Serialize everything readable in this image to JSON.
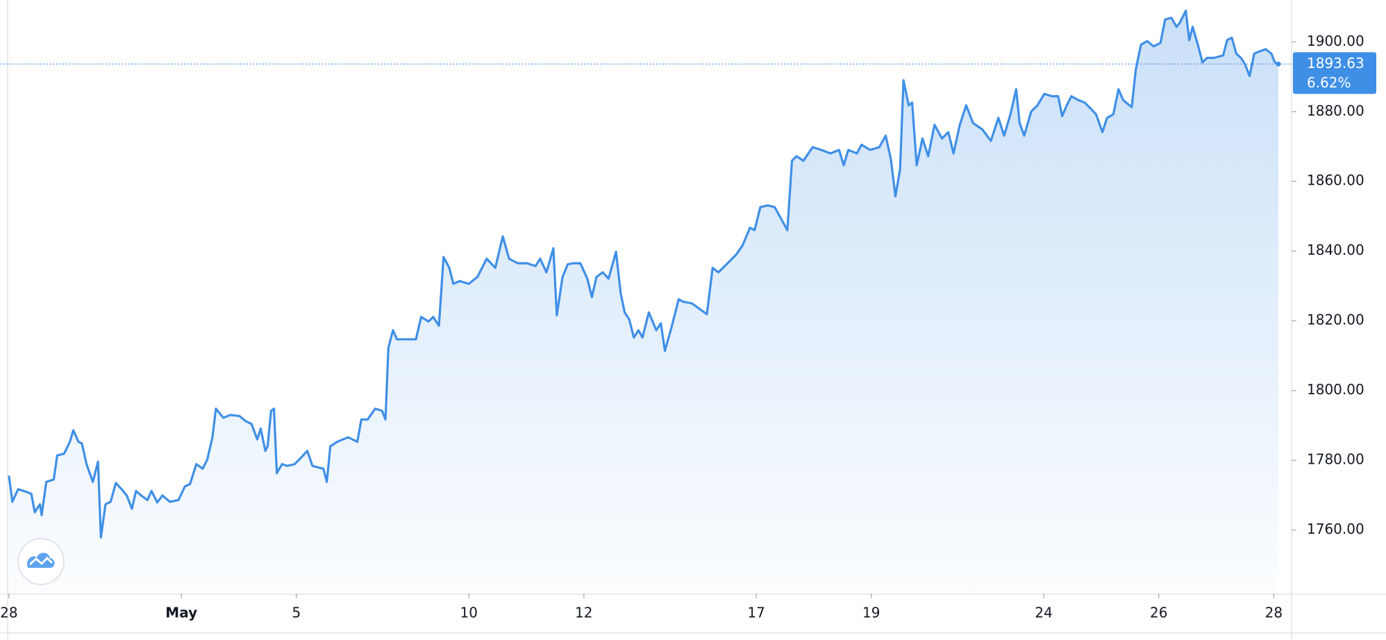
{
  "chart_data": {
    "type": "area",
    "x": [
      0.0,
      0.06,
      0.16,
      0.26,
      0.39,
      0.45,
      0.54,
      0.57,
      0.65,
      0.78,
      0.84,
      0.96,
      1.06,
      1.12,
      1.21,
      1.27,
      1.35,
      1.46,
      1.55,
      1.6,
      1.68,
      1.77,
      1.86,
      1.96,
      2.05,
      2.14,
      2.21,
      2.3,
      2.41,
      2.48,
      2.58,
      2.67,
      2.8,
      2.95,
      3.06,
      3.15,
      3.26,
      3.37,
      3.45,
      3.54,
      3.6,
      3.73,
      3.85,
      4.01,
      4.12,
      4.22,
      4.32,
      4.38,
      4.46,
      4.5,
      4.56,
      4.61,
      4.66,
      4.75,
      4.84,
      4.97,
      5.09,
      5.19,
      5.28,
      5.39,
      5.47,
      5.53,
      5.59,
      5.71,
      5.9,
      6.06,
      6.13,
      6.24,
      6.37,
      6.49,
      6.55,
      6.6,
      6.68,
      6.75,
      6.91,
      7.08,
      7.17,
      7.3,
      7.38,
      7.48,
      7.56,
      7.66,
      7.73,
      7.84,
      8.0,
      8.15,
      8.31,
      8.46,
      8.59,
      8.7,
      8.85,
      9.01,
      9.16,
      9.24,
      9.35,
      9.47,
      9.53,
      9.63,
      9.72,
      9.81,
      9.94,
      10.06,
      10.14,
      10.22,
      10.33,
      10.43,
      10.56,
      10.64,
      10.71,
      10.79,
      10.87,
      10.95,
      11.02,
      11.13,
      11.26,
      11.34,
      11.41,
      11.52,
      11.65,
      11.72,
      11.88,
      12.03,
      12.14,
      12.24,
      12.34,
      12.5,
      12.65,
      12.76,
      12.89,
      12.97,
      13.07,
      13.2,
      13.32,
      13.43,
      13.54,
      13.62,
      13.7,
      13.82,
      13.98,
      14.13,
      14.29,
      14.44,
      14.52,
      14.6,
      14.75,
      14.83,
      14.98,
      15.14,
      15.25,
      15.34,
      15.42,
      15.5,
      15.56,
      15.65,
      15.71,
      15.79,
      15.89,
      15.99,
      16.1,
      16.23,
      16.34,
      16.43,
      16.54,
      16.65,
      16.77,
      16.93,
      17.08,
      17.21,
      17.31,
      17.42,
      17.52,
      17.58,
      17.66,
      17.78,
      17.89,
      18.01,
      18.14,
      18.25,
      18.32,
      18.4,
      18.48,
      18.6,
      18.71,
      18.82,
      18.91,
      19.02,
      19.1,
      19.21,
      19.3,
      19.38,
      19.49,
      19.53,
      19.6,
      19.69,
      19.8,
      19.91,
      20.03,
      20.11,
      20.22,
      20.31,
      20.37,
      20.47,
      20.53,
      20.59,
      20.68,
      20.76,
      20.84,
      20.96,
      21.12,
      21.19,
      21.27,
      21.35,
      21.43,
      21.5,
      21.58,
      21.66,
      21.74,
      21.86,
      21.96,
      22.02,
      22.08
    ],
    "series": [
      {
        "color": "#3f8fe6",
        "values": [
          1775.6,
          1768.1,
          1771.7,
          1771.2,
          1770.4,
          1765.1,
          1767.4,
          1764.3,
          1773.8,
          1774.5,
          1781.4,
          1781.9,
          1785.3,
          1788.6,
          1785.3,
          1784.8,
          1778.9,
          1773.8,
          1779.6,
          1757.9,
          1767.4,
          1768.1,
          1773.5,
          1771.7,
          1769.9,
          1766.1,
          1771.2,
          1769.9,
          1768.6,
          1771.2,
          1767.9,
          1769.9,
          1768.1,
          1768.6,
          1772.5,
          1773.2,
          1778.9,
          1777.6,
          1780.2,
          1786.6,
          1794.8,
          1792.2,
          1793.0,
          1792.7,
          1791.2,
          1790.4,
          1786.0,
          1789.1,
          1782.7,
          1784.0,
          1794.2,
          1794.8,
          1776.3,
          1778.9,
          1778.4,
          1778.9,
          1780.9,
          1782.7,
          1778.4,
          1777.9,
          1777.6,
          1773.8,
          1784.0,
          1785.3,
          1786.6,
          1785.3,
          1791.7,
          1791.7,
          1794.8,
          1794.2,
          1791.7,
          1812.2,
          1817.3,
          1814.7,
          1814.7,
          1814.7,
          1821.1,
          1819.8,
          1821.1,
          1818.6,
          1838.3,
          1835.2,
          1830.6,
          1831.4,
          1830.6,
          1832.6,
          1837.8,
          1835.2,
          1844.2,
          1837.8,
          1836.5,
          1836.5,
          1835.7,
          1837.8,
          1833.9,
          1840.8,
          1821.6,
          1832.6,
          1836.2,
          1836.5,
          1836.5,
          1832.1,
          1826.8,
          1832.6,
          1833.9,
          1832.1,
          1839.8,
          1828.0,
          1822.4,
          1820.4,
          1815.2,
          1817.3,
          1815.2,
          1822.4,
          1817.3,
          1819.3,
          1811.4,
          1817.8,
          1826.2,
          1825.5,
          1825.0,
          1823.2,
          1821.9,
          1835.2,
          1833.9,
          1836.5,
          1839.0,
          1841.6,
          1846.7,
          1846.0,
          1852.6,
          1853.1,
          1852.6,
          1849.3,
          1846.0,
          1865.9,
          1867.2,
          1865.9,
          1869.8,
          1869.0,
          1868.0,
          1869.0,
          1864.6,
          1869.0,
          1868.0,
          1870.5,
          1869.0,
          1869.8,
          1873.1,
          1866.4,
          1855.7,
          1863.4,
          1889.0,
          1881.8,
          1882.6,
          1864.6,
          1872.3,
          1867.2,
          1876.2,
          1872.3,
          1874.1,
          1868.0,
          1876.2,
          1881.8,
          1876.7,
          1874.9,
          1871.6,
          1878.2,
          1873.1,
          1879.2,
          1886.4,
          1876.7,
          1873.1,
          1880.0,
          1881.8,
          1885.1,
          1884.4,
          1884.4,
          1878.7,
          1881.8,
          1884.4,
          1883.3,
          1882.6,
          1880.8,
          1879.2,
          1874.1,
          1878.2,
          1879.2,
          1886.4,
          1883.3,
          1881.8,
          1881.3,
          1892.0,
          1899.2,
          1900.2,
          1898.7,
          1899.7,
          1906.4,
          1906.9,
          1904.3,
          1905.6,
          1908.9,
          1900.5,
          1904.3,
          1899.2,
          1894.1,
          1895.4,
          1895.4,
          1896.1,
          1900.5,
          1901.2,
          1896.6,
          1895.4,
          1893.6,
          1890.2,
          1896.6,
          1897.2,
          1897.9,
          1896.6,
          1894.1,
          1893.63
        ]
      }
    ],
    "xlim": [
      -0.155,
      22.31
    ],
    "xticks": [
      {
        "value": 0,
        "label": "28"
      },
      {
        "value": 3,
        "label": "May"
      },
      {
        "value": 5,
        "label": "5"
      },
      {
        "value": 8,
        "label": "10"
      },
      {
        "value": 10,
        "label": "12"
      },
      {
        "value": 13,
        "label": "17"
      },
      {
        "value": 15,
        "label": "19"
      },
      {
        "value": 18,
        "label": "24"
      },
      {
        "value": 20,
        "label": "26"
      },
      {
        "value": 22,
        "label": "28"
      }
    ],
    "ylim": [
      1741.8,
      1912.0
    ],
    "yticks": [
      {
        "value": 1760,
        "label": "1760.00"
      },
      {
        "value": 1780,
        "label": "1780.00"
      },
      {
        "value": 1800,
        "label": "1800.00"
      },
      {
        "value": 1820,
        "label": "1820.00"
      },
      {
        "value": 1840,
        "label": "1840.00"
      },
      {
        "value": 1860,
        "label": "1860.00"
      },
      {
        "value": 1880,
        "label": "1880.00"
      },
      {
        "value": 1900,
        "label": "1900.00"
      }
    ],
    "last_price": 1893.63,
    "change": {
      "value": 6.62,
      "label": "6.62%"
    },
    "grid": false
  }
}
